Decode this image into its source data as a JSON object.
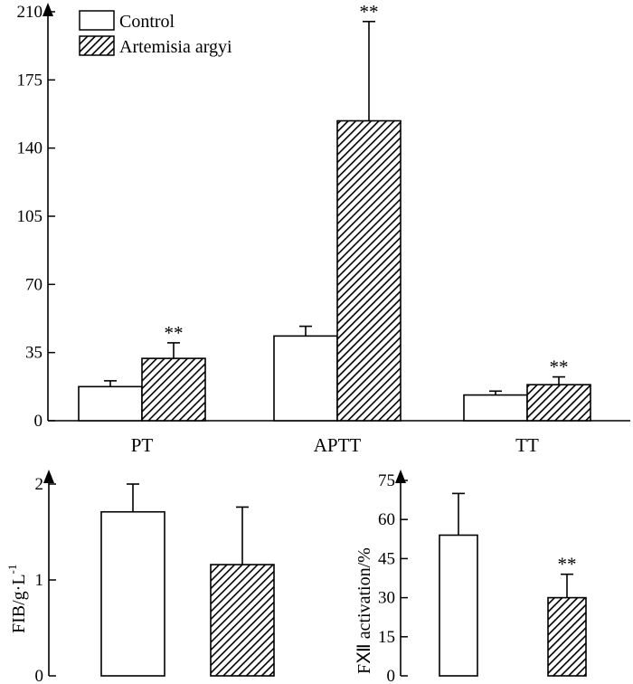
{
  "chart_data": [
    {
      "id": "main",
      "type": "bar",
      "title": "",
      "xlabel": "",
      "ylabel": "",
      "categories": [
        "PT",
        "APTT",
        "TT"
      ],
      "series": [
        {
          "name": "Control",
          "values": [
            17.5,
            43.5,
            13.2
          ],
          "errors": [
            3.0,
            5.0,
            2.0
          ],
          "pattern": "open"
        },
        {
          "name": "Artemisia argyi",
          "values": [
            32,
            154,
            18.5
          ],
          "errors": [
            8.0,
            51.0,
            4.0
          ],
          "pattern": "hatched"
        }
      ],
      "significance": [
        {
          "category": "PT",
          "series": "Artemisia argyi",
          "label": "**"
        },
        {
          "category": "APTT",
          "series": "Artemisia argyi",
          "label": "**"
        },
        {
          "category": "TT",
          "series": "Artemisia argyi",
          "label": "**"
        }
      ],
      "yticks": [
        "0",
        "35",
        "70",
        "105",
        "140",
        "175",
        "210"
      ],
      "ylim": [
        0,
        210
      ],
      "legend": "top-left"
    },
    {
      "id": "fib",
      "type": "bar",
      "ylabel": "FIB/g·L",
      "ylabel_sup": "-1",
      "categories": [
        "Control",
        "Artemisia argyi"
      ],
      "values": [
        1.71,
        1.16
      ],
      "errors": [
        0.29,
        0.6
      ],
      "yticks": [
        "0",
        "1",
        "2"
      ],
      "ylim": [
        0,
        2
      ]
    },
    {
      "id": "fxii",
      "type": "bar",
      "ylabel": "FⅫ activation/%",
      "categories": [
        "Control",
        "Artemisia argyi"
      ],
      "values": [
        54,
        30
      ],
      "errors": [
        16,
        9
      ],
      "yticks": [
        "0",
        "15",
        "30",
        "45",
        "60",
        "75"
      ],
      "ylim": [
        0,
        75
      ],
      "significance": [
        {
          "category": "Artemisia argyi",
          "label": "**"
        }
      ]
    }
  ]
}
